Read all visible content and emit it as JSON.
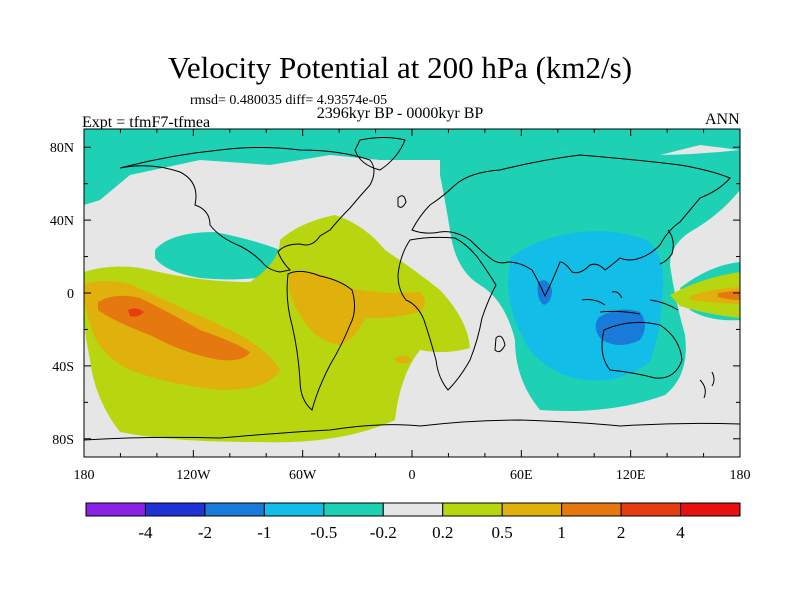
{
  "title": "Velocity Potential at 200 hPa (km2/s)",
  "stats": "rmsd= 0.480035 diff= 4.93574e-05",
  "period": "2396kyr BP - 0000kyr BP",
  "experiment": "Expt = tfmF7-tfmea",
  "season": "ANN",
  "axes": {
    "x_ticks": [
      "180",
      "120W",
      "60W",
      "0",
      "60E",
      "120E",
      "180"
    ],
    "y_ticks": [
      "80N",
      "40N",
      "0",
      "40S",
      "80S"
    ],
    "x_values": [
      -180,
      -120,
      -60,
      0,
      60,
      120,
      180
    ],
    "y_values": [
      80,
      40,
      0,
      -40,
      -80
    ],
    "lon_range": [
      -180,
      180
    ],
    "lat_range": [
      -90,
      90
    ]
  },
  "colorbar": {
    "labels": [
      "-4",
      "-2",
      "-1",
      "-0.5",
      "-0.2",
      "0.2",
      "0.5",
      "1",
      "2",
      "4"
    ],
    "colors": [
      "#8a22e6",
      "#1f33d6",
      "#1a7ad9",
      "#12bde8",
      "#1fd1b4",
      "#e6e6e6",
      "#b8d60f",
      "#e0b00c",
      "#e5790f",
      "#e63c10",
      "#e61010"
    ]
  },
  "colors": {
    "neutral": "#e6e6e6",
    "pos1": "#b8d60f",
    "pos2": "#e0b00c",
    "pos3": "#e5790f",
    "pos4": "#e63c10",
    "neg1": "#1fd1b4",
    "neg2": "#12bde8",
    "neg3": "#1a7ad9"
  }
}
